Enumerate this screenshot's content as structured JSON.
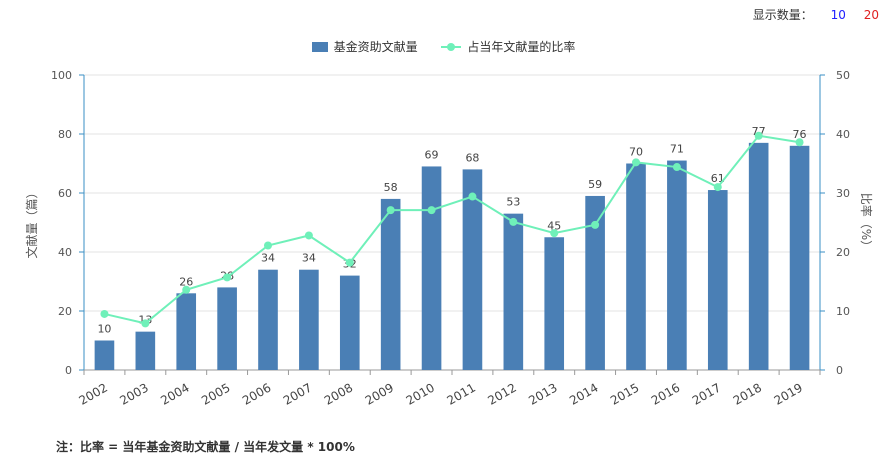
{
  "controls": {
    "label": "显示数量：",
    "option_a": "10",
    "option_b": "20"
  },
  "chart_data": {
    "type": "bar",
    "categories": [
      "2002",
      "2003",
      "2004",
      "2005",
      "2006",
      "2007",
      "2008",
      "2009",
      "2010",
      "2011",
      "2012",
      "2013",
      "2014",
      "2015",
      "2016",
      "2017",
      "2018",
      "2019"
    ],
    "series": [
      {
        "name": "基金资助文献量",
        "type": "bar",
        "axis": "left",
        "color": "#4a7fb5",
        "values": [
          10,
          13,
          26,
          28,
          34,
          34,
          32,
          58,
          69,
          68,
          53,
          45,
          59,
          70,
          71,
          61,
          77,
          76
        ],
        "data_labels": true
      },
      {
        "name": "占当年文献量的比率",
        "type": "line",
        "axis": "right",
        "color": "#6ff0b9",
        "values": [
          9.5,
          7.9,
          13.6,
          15.7,
          21.1,
          22.8,
          18.2,
          27.1,
          27.1,
          29.4,
          25.1,
          23.2,
          24.6,
          35.2,
          34.4,
          31.0,
          39.7,
          38.6
        ]
      }
    ],
    "ylabel": "文献量（篇）",
    "ylim": [
      0,
      100
    ],
    "y_ticks": [
      0,
      20,
      40,
      60,
      80,
      100
    ],
    "y2label": "比率（%）",
    "y2lim": [
      0,
      50
    ],
    "y2_ticks": [
      0,
      10,
      20,
      30,
      40,
      50
    ],
    "grid": true,
    "legend_position": "top-center"
  },
  "footnote": "注：比率 = 当年基金资助文献量 / 当年发文量 * 100%"
}
